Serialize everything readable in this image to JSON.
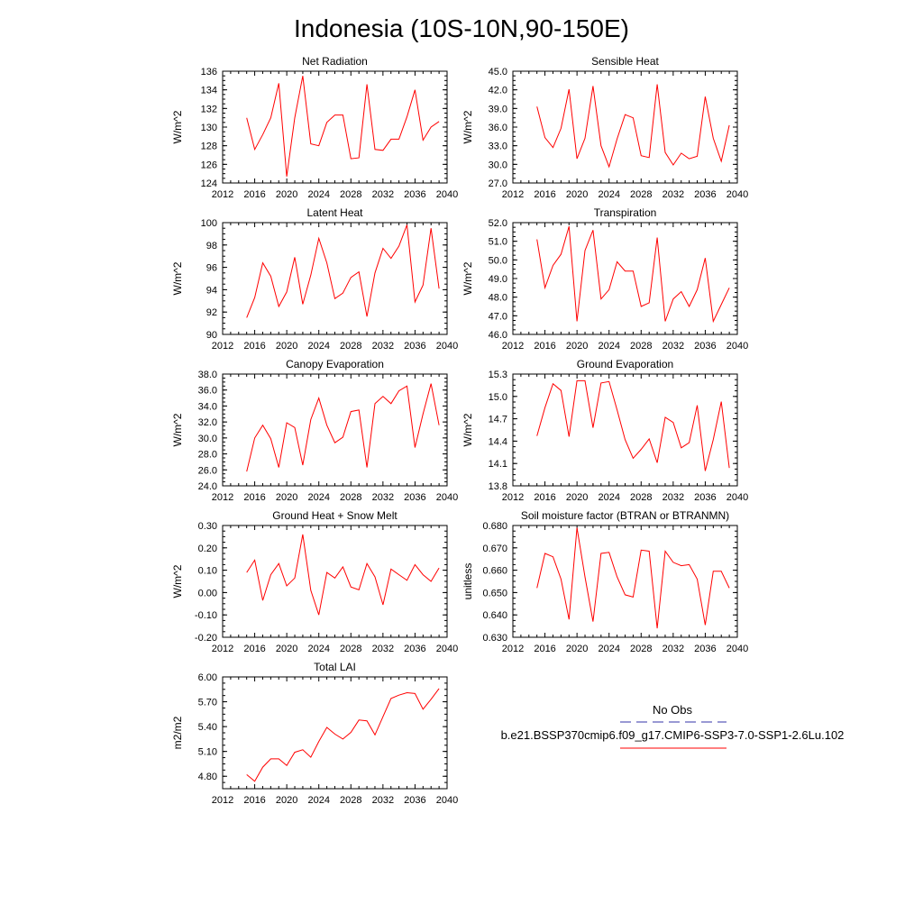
{
  "page_title": "Indonesia (10S-10N,90-150E)",
  "legend": {
    "obs_label": "No Obs",
    "obs_color": "#3333aa",
    "model_label": "b.e21.BSSP370cmip6.f09_g17.CMIP6-SSP3-7.0-SSP1-2.6Lu.102",
    "model_color": "#ff0000"
  },
  "chart_data": [
    {
      "type": "line",
      "title": "Net Radiation",
      "ylabel": "W/m^2",
      "xlim": [
        2012,
        2040
      ],
      "xticks": [
        "2012",
        "2016",
        "2020",
        "2024",
        "2028",
        "2032",
        "2036",
        "2040"
      ],
      "ylim": [
        124,
        136
      ],
      "yticks": [
        "124",
        "126",
        "128",
        "130",
        "132",
        "134",
        "136"
      ],
      "series": [
        {
          "x": [
            2015,
            2016,
            2017,
            2018,
            2019,
            2020,
            2021,
            2022,
            2023,
            2024,
            2025,
            2026,
            2027,
            2028,
            2029,
            2030,
            2031,
            2032,
            2033,
            2034,
            2035,
            2036,
            2037,
            2038,
            2039
          ],
          "values": [
            131.0,
            127.6,
            129.2,
            131.0,
            134.7,
            124.7,
            131.0,
            135.5,
            128.2,
            128.0,
            130.5,
            131.3,
            131.3,
            126.6,
            126.7,
            134.6,
            127.6,
            127.5,
            128.7,
            128.7,
            131.1,
            134.0,
            128.6,
            130.0,
            130.6
          ]
        }
      ]
    },
    {
      "type": "line",
      "title": "Sensible Heat",
      "ylabel": "W/m^2",
      "xlim": [
        2012,
        2040
      ],
      "xticks": [
        "2012",
        "2016",
        "2020",
        "2024",
        "2028",
        "2032",
        "2036",
        "2040"
      ],
      "ylim": [
        27.0,
        45.0
      ],
      "yticks": [
        "27.0",
        "30.0",
        "33.0",
        "36.0",
        "39.0",
        "42.0",
        "45.0"
      ],
      "series": [
        {
          "x": [
            2015,
            2016,
            2017,
            2018,
            2019,
            2020,
            2021,
            2022,
            2023,
            2024,
            2025,
            2026,
            2027,
            2028,
            2029,
            2030,
            2031,
            2032,
            2033,
            2034,
            2035,
            2036,
            2037,
            2038,
            2039
          ],
          "values": [
            39.3,
            34.3,
            32.7,
            35.8,
            42.1,
            30.9,
            34.2,
            42.6,
            33.0,
            29.6,
            34.1,
            38.0,
            37.5,
            31.4,
            31.1,
            42.9,
            31.9,
            29.9,
            31.8,
            30.9,
            31.3,
            40.9,
            34.2,
            30.5,
            36.3
          ]
        }
      ]
    },
    {
      "type": "line",
      "title": "Latent Heat",
      "ylabel": "W/m^2",
      "xlim": [
        2012,
        2040
      ],
      "xticks": [
        "2012",
        "2016",
        "2020",
        "2024",
        "2028",
        "2032",
        "2036",
        "2040"
      ],
      "ylim": [
        90,
        100
      ],
      "yticks": [
        "90",
        "92",
        "94",
        "96",
        "98",
        "100"
      ],
      "series": [
        {
          "x": [
            2015,
            2016,
            2017,
            2018,
            2019,
            2020,
            2021,
            2022,
            2023,
            2024,
            2025,
            2026,
            2027,
            2028,
            2029,
            2030,
            2031,
            2032,
            2033,
            2034,
            2035,
            2036,
            2037,
            2038,
            2039
          ],
          "values": [
            91.5,
            93.3,
            96.4,
            95.2,
            92.5,
            93.8,
            96.9,
            92.7,
            95.3,
            98.6,
            96.4,
            93.2,
            93.7,
            95.1,
            95.6,
            91.6,
            95.5,
            97.7,
            96.8,
            97.9,
            99.8,
            92.9,
            94.4,
            99.5,
            94.1
          ]
        }
      ]
    },
    {
      "type": "line",
      "title": "Transpiration",
      "ylabel": "W/m^2",
      "xlim": [
        2012,
        2040
      ],
      "xticks": [
        "2012",
        "2016",
        "2020",
        "2024",
        "2028",
        "2032",
        "2036",
        "2040"
      ],
      "ylim": [
        46.0,
        52.0
      ],
      "yticks": [
        "46.0",
        "47.0",
        "48.0",
        "49.0",
        "50.0",
        "51.0",
        "52.0"
      ],
      "series": [
        {
          "x": [
            2015,
            2016,
            2017,
            2018,
            2019,
            2020,
            2021,
            2022,
            2023,
            2024,
            2025,
            2026,
            2027,
            2028,
            2029,
            2030,
            2031,
            2032,
            2033,
            2034,
            2035,
            2036,
            2037,
            2038,
            2039
          ],
          "values": [
            51.1,
            48.5,
            49.7,
            50.3,
            51.8,
            46.7,
            50.5,
            51.6,
            47.9,
            48.4,
            49.9,
            49.4,
            49.4,
            47.5,
            47.7,
            51.2,
            46.7,
            47.9,
            48.3,
            47.5,
            48.4,
            50.1,
            46.7,
            47.6,
            48.5
          ]
        }
      ]
    },
    {
      "type": "line",
      "title": "Canopy Evaporation",
      "ylabel": "W/m^2",
      "xlim": [
        2012,
        2040
      ],
      "xticks": [
        "2012",
        "2016",
        "2020",
        "2024",
        "2028",
        "2032",
        "2036",
        "2040"
      ],
      "ylim": [
        24.0,
        38.0
      ],
      "yticks": [
        "24.0",
        "26.0",
        "28.0",
        "30.0",
        "32.0",
        "34.0",
        "36.0",
        "38.0"
      ],
      "series": [
        {
          "x": [
            2015,
            2016,
            2017,
            2018,
            2019,
            2020,
            2021,
            2022,
            2023,
            2024,
            2025,
            2026,
            2027,
            2028,
            2029,
            2030,
            2031,
            2032,
            2033,
            2034,
            2035,
            2036,
            2037,
            2038,
            2039
          ],
          "values": [
            25.8,
            30.0,
            31.6,
            29.9,
            26.3,
            31.9,
            31.3,
            26.6,
            32.3,
            35.0,
            31.6,
            29.4,
            30.1,
            33.3,
            33.5,
            26.3,
            34.3,
            35.2,
            34.3,
            35.9,
            36.5,
            28.8,
            33.0,
            36.8,
            31.6
          ]
        }
      ]
    },
    {
      "type": "line",
      "title": "Ground Evaporation",
      "ylabel": "W/m^2",
      "xlim": [
        2012,
        2040
      ],
      "xticks": [
        "2012",
        "2016",
        "2020",
        "2024",
        "2028",
        "2032",
        "2036",
        "2040"
      ],
      "ylim": [
        13.8,
        15.3
      ],
      "yticks": [
        "13.8",
        "14.1",
        "14.4",
        "14.7",
        "15.0",
        "15.3"
      ],
      "series": [
        {
          "x": [
            2015,
            2016,
            2017,
            2018,
            2019,
            2020,
            2021,
            2022,
            2023,
            2024,
            2025,
            2026,
            2027,
            2028,
            2029,
            2030,
            2031,
            2032,
            2033,
            2034,
            2035,
            2036,
            2037,
            2038,
            2039
          ],
          "values": [
            14.47,
            14.85,
            15.17,
            15.08,
            14.46,
            15.21,
            15.21,
            14.58,
            15.18,
            15.2,
            14.82,
            14.42,
            14.17,
            14.29,
            14.43,
            14.11,
            14.72,
            14.65,
            14.31,
            14.38,
            14.88,
            14.0,
            14.42,
            14.93,
            14.04
          ]
        }
      ]
    },
    {
      "type": "line",
      "title": "Ground Heat + Snow Melt",
      "ylabel": "W/m^2",
      "xlim": [
        2012,
        2040
      ],
      "xticks": [
        "2012",
        "2016",
        "2020",
        "2024",
        "2028",
        "2032",
        "2036",
        "2040"
      ],
      "ylim": [
        -0.2,
        0.3
      ],
      "yticks": [
        "-0.20",
        "-0.10",
        "0.00",
        "0.10",
        "0.20",
        "0.30"
      ],
      "series": [
        {
          "x": [
            2015,
            2016,
            2017,
            2018,
            2019,
            2020,
            2021,
            2022,
            2023,
            2024,
            2025,
            2026,
            2027,
            2028,
            2029,
            2030,
            2031,
            2032,
            2033,
            2034,
            2035,
            2036,
            2037,
            2038,
            2039
          ],
          "values": [
            0.09,
            0.145,
            -0.035,
            0.08,
            0.13,
            0.03,
            0.065,
            0.26,
            0.01,
            -0.1,
            0.09,
            0.065,
            0.115,
            0.025,
            0.012,
            0.13,
            0.07,
            -0.055,
            0.105,
            0.08,
            0.055,
            0.125,
            0.08,
            0.05,
            0.11
          ]
        }
      ]
    },
    {
      "type": "line",
      "title": "Soil moisture factor (BTRAN or BTRANMN)",
      "ylabel": "unitless",
      "xlim": [
        2012,
        2040
      ],
      "xticks": [
        "2012",
        "2016",
        "2020",
        "2024",
        "2028",
        "2032",
        "2036",
        "2040"
      ],
      "ylim": [
        0.63,
        0.68
      ],
      "yticks": [
        "0.630",
        "0.640",
        "0.650",
        "0.660",
        "0.670",
        "0.680"
      ],
      "series": [
        {
          "x": [
            2015,
            2016,
            2017,
            2018,
            2019,
            2020,
            2021,
            2022,
            2023,
            2024,
            2025,
            2026,
            2027,
            2028,
            2029,
            2030,
            2031,
            2032,
            2033,
            2034,
            2035,
            2036,
            2037,
            2038,
            2039
          ],
          "values": [
            0.652,
            0.6675,
            0.666,
            0.656,
            0.638,
            0.679,
            0.657,
            0.637,
            0.6675,
            0.668,
            0.657,
            0.649,
            0.648,
            0.669,
            0.6685,
            0.634,
            0.6685,
            0.6635,
            0.662,
            0.6625,
            0.656,
            0.6355,
            0.6595,
            0.6595,
            0.652
          ]
        }
      ]
    },
    {
      "type": "line",
      "title": "Total LAI",
      "ylabel": "m2/m2",
      "xlim": [
        2012,
        2040
      ],
      "xticks": [
        "2012",
        "2016",
        "2020",
        "2024",
        "2028",
        "2032",
        "2036",
        "2040"
      ],
      "ylim": [
        4.65,
        6.0
      ],
      "yticks": [
        "4.80",
        "5.10",
        "5.40",
        "5.70",
        "6.00"
      ],
      "series": [
        {
          "x": [
            2015,
            2016,
            2017,
            2018,
            2019,
            2020,
            2021,
            2022,
            2023,
            2024,
            2025,
            2026,
            2027,
            2028,
            2029,
            2030,
            2031,
            2032,
            2033,
            2034,
            2035,
            2036,
            2037,
            2038,
            2039
          ],
          "values": [
            4.82,
            4.74,
            4.91,
            5.01,
            5.01,
            4.93,
            5.09,
            5.12,
            5.03,
            5.22,
            5.39,
            5.31,
            5.25,
            5.33,
            5.48,
            5.47,
            5.3,
            5.52,
            5.74,
            5.78,
            5.81,
            5.8,
            5.61,
            5.73,
            5.86
          ]
        }
      ]
    }
  ]
}
